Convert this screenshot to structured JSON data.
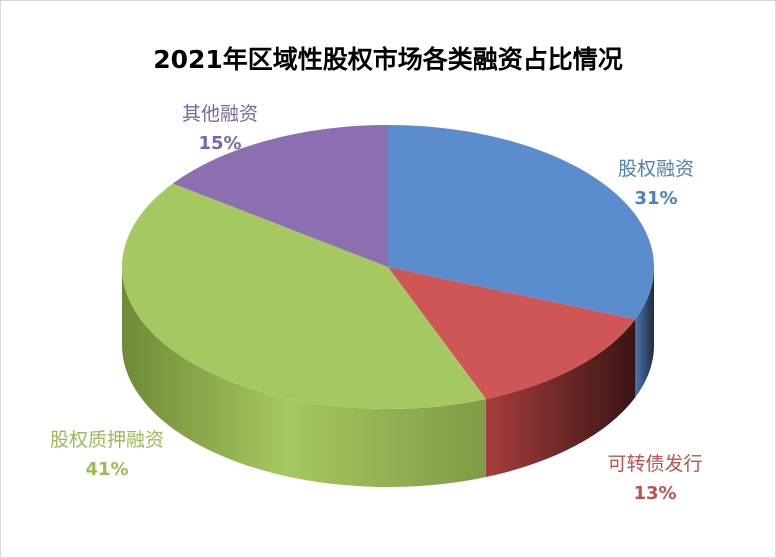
{
  "chart_data": {
    "type": "pie",
    "title": "2021年区域性股权市场各类融资占比情况",
    "slices": [
      {
        "label": "股权融资",
        "percent_label": "31%",
        "value": 31,
        "color": "#5b8ccd"
      },
      {
        "label": "可转债发行",
        "percent_label": "13%",
        "value": 13,
        "color": "#cf5656"
      },
      {
        "label": "股权质押融资",
        "percent_label": "41%",
        "value": 41,
        "color": "#a6c861"
      },
      {
        "label": "其他融资",
        "percent_label": "15%",
        "value": 15,
        "color": "#8c6fb0"
      }
    ]
  }
}
